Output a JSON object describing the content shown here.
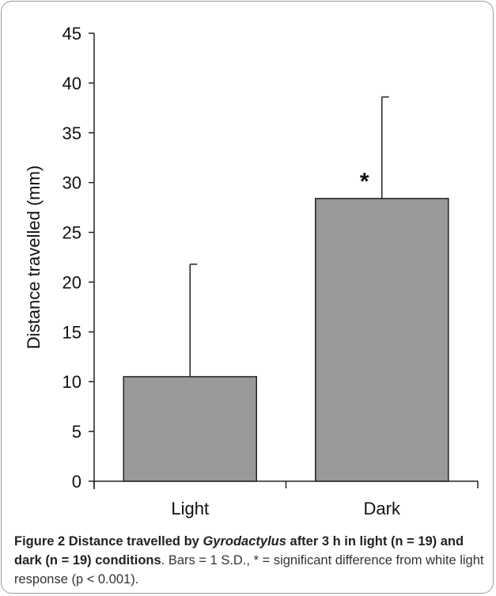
{
  "chart_data": {
    "type": "bar",
    "categories": [
      "Light",
      "Dark"
    ],
    "values": [
      10.5,
      28.4
    ],
    "error_bars": [
      11.3,
      10.2
    ],
    "ylabel": "Distance travelled (mm)",
    "xlabel": "",
    "ylim": [
      0,
      45
    ],
    "yticks": [
      0,
      5,
      10,
      15,
      20,
      25,
      30,
      35,
      40,
      45
    ],
    "grid": false,
    "bar_color": "#999999",
    "annotations": [
      {
        "category": "Dark",
        "text": "*"
      }
    ]
  },
  "caption": {
    "fig_label": "Figure 2",
    "title_part1": "Distance travelled by",
    "title_italic": "Gyrodactylus",
    "title_part2": "after 3 h in light (n = 19) and dark (n = 19) conditions",
    "body": ". Bars = 1 S.D., * = significant difference from white light response (p < 0.001)."
  }
}
